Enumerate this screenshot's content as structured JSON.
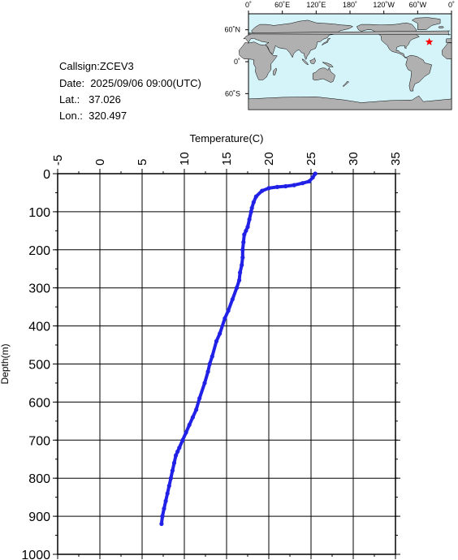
{
  "info": {
    "callsign": "Callsign:ZCEV3",
    "date": "Date:  2025/09/06 09:00(UTC)",
    "lat": "Lat.:   37.026",
    "lon": "Lon.:  320.497"
  },
  "map": {
    "top_labels": [
      "0˚",
      "60˚E",
      "120˚E",
      "180˚",
      "120˚W",
      "60˚W",
      "0˚"
    ],
    "left_labels": [
      "60˚N",
      "0˚",
      "60˚S"
    ],
    "ocean_color": "#d4f4fa",
    "land_color": "#b0b0b0",
    "marker_color": "#ff0000",
    "marker_icon": "star-icon",
    "station": {
      "lon": 320.497,
      "lat": 37.026
    }
  },
  "chart_data": {
    "type": "line",
    "xlabel": "Temperature(C)",
    "ylabel": "Depth(m)",
    "xlim": [
      -5,
      35
    ],
    "ylim": [
      1000,
      0
    ],
    "x_ticks": [
      -5,
      0,
      5,
      10,
      15,
      20,
      25,
      30,
      35
    ],
    "y_ticks": [
      0,
      100,
      200,
      300,
      400,
      500,
      600,
      700,
      800,
      900,
      1000
    ],
    "grid": true,
    "line_color": "#2020e6",
    "series": [
      {
        "x": [
          25.5,
          25.2,
          24.8,
          24.0,
          23.0,
          22.0,
          21.0,
          20.0,
          19.2,
          18.5,
          18.2,
          18.0,
          17.9,
          17.7,
          17.5,
          17.3,
          17.1,
          17.0,
          16.9,
          16.9,
          16.8,
          16.6,
          16.5,
          16.2,
          15.7,
          15.2,
          14.8,
          14.2,
          13.8,
          13.3,
          13.0,
          12.8,
          12.4,
          11.8,
          11.4,
          11.0,
          10.6,
          10.2,
          9.8,
          9.4,
          9.2,
          9.0,
          8.8,
          8.6,
          8.4,
          8.2,
          8.0,
          7.8,
          7.6,
          7.4,
          7.3
        ],
        "y": [
          0,
          10,
          20,
          25,
          30,
          33,
          35,
          38,
          45,
          60,
          75,
          90,
          100,
          120,
          140,
          150,
          160,
          180,
          200,
          220,
          240,
          260,
          280,
          300,
          330,
          360,
          380,
          420,
          440,
          480,
          500,
          520,
          550,
          590,
          620,
          640,
          660,
          680,
          700,
          720,
          730,
          740,
          760,
          780,
          800,
          820,
          840,
          860,
          880,
          900,
          920
        ]
      }
    ]
  }
}
